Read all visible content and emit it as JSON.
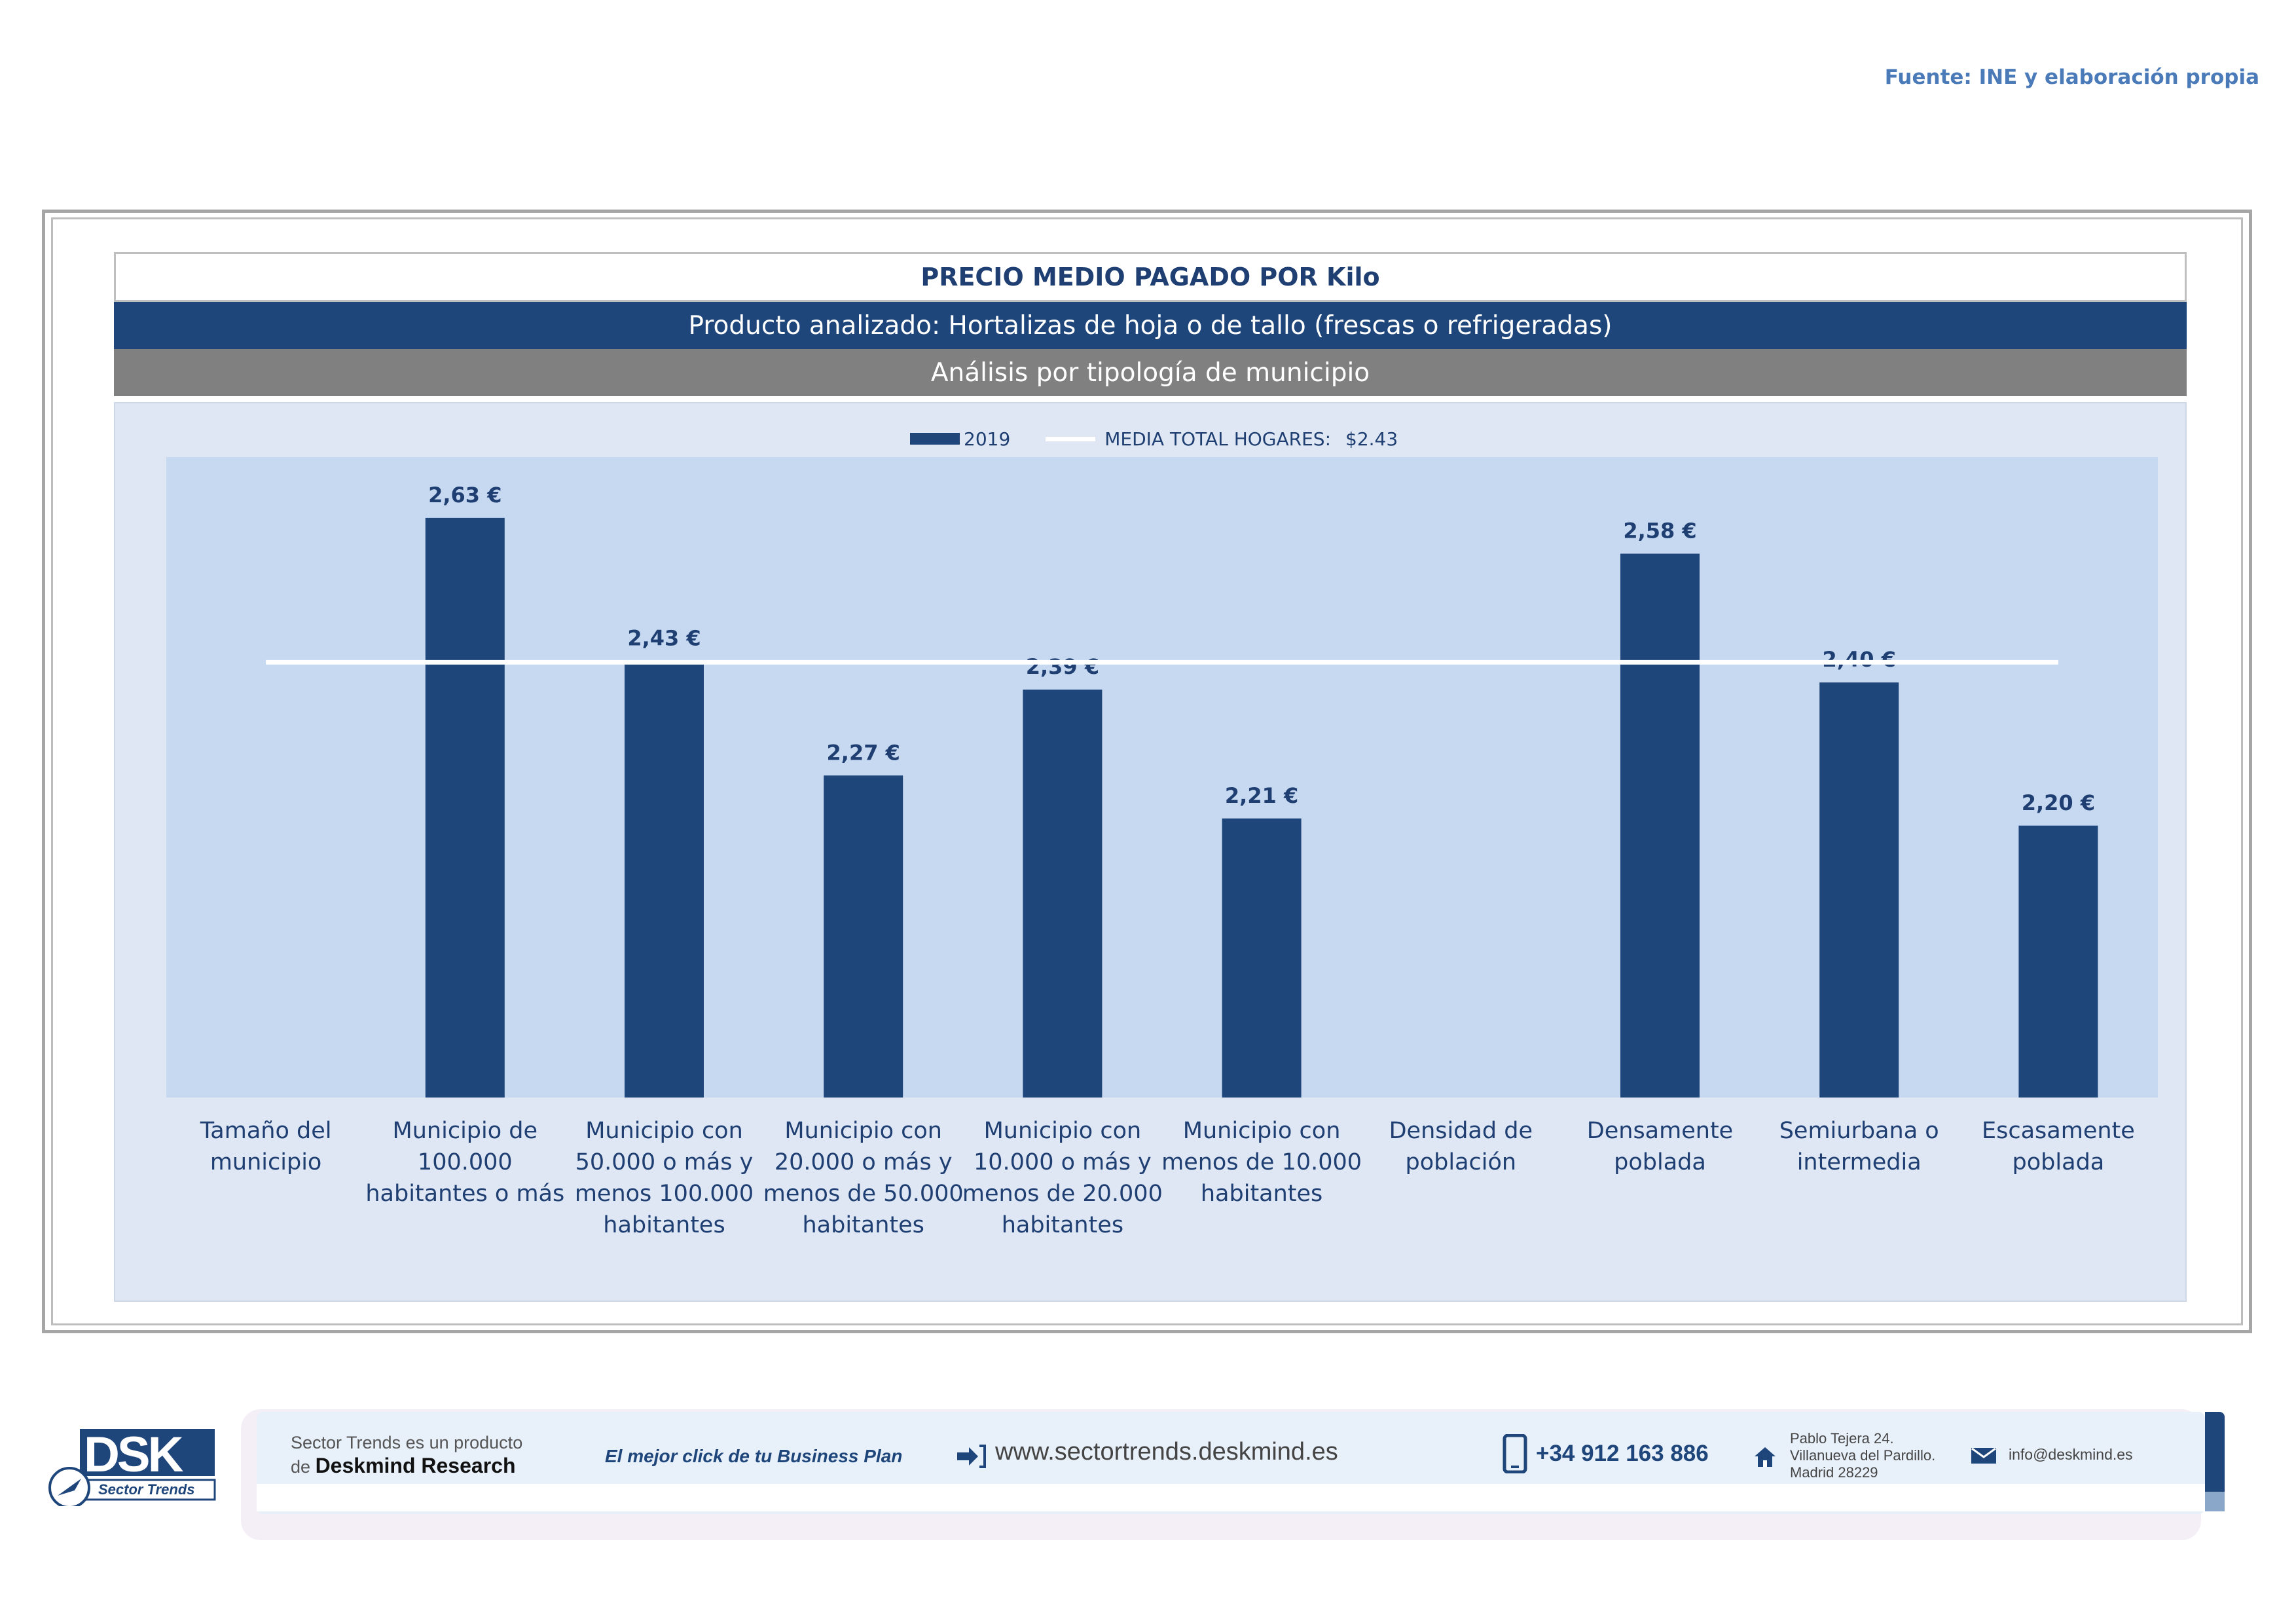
{
  "header": {
    "source": "Fuente: INE y elaboración propia"
  },
  "panel": {
    "title": "PRECIO MEDIO PAGADO POR Kilo",
    "product": "Producto analizado: Hortalizas de hoja o de tallo (frescas o refrigeradas)",
    "analysis": "Análisis por tipología de municipio"
  },
  "chart_data": {
    "type": "bar",
    "title": "PRECIO MEDIO PAGADO POR Kilo",
    "xlabel": "",
    "ylabel": "",
    "ylim": [
      1.82,
      2.715
    ],
    "grid": false,
    "legend_position": "top-center",
    "categories": [
      [
        "Tamaño del",
        "municipio"
      ],
      [
        "Municipio de",
        "100.000",
        "habitantes o más"
      ],
      [
        "Municipio con",
        "50.000 o más y",
        "menos 100.000",
        "habitantes"
      ],
      [
        "Municipio con",
        "20.000 o más y",
        "menos de 50.000",
        "habitantes"
      ],
      [
        "Municipio con",
        "10.000 o más y",
        "menos de 20.000",
        "habitantes"
      ],
      [
        "Municipio con",
        "menos de 10.000",
        "habitantes"
      ],
      [
        "Densidad de",
        "población"
      ],
      [
        "Densamente",
        "poblada"
      ],
      [
        "Semiurbana o",
        "intermedia"
      ],
      [
        "Escasamente",
        "poblada"
      ]
    ],
    "series": [
      {
        "name": "2019",
        "values": [
          null,
          2.63,
          2.43,
          2.27,
          2.39,
          2.21,
          null,
          2.58,
          2.4,
          2.2
        ],
        "labels": [
          "",
          "2,63 €",
          "2,43 €",
          "2,27 €",
          "2,39 €",
          "2,21 €",
          "",
          "2,58 €",
          "2,40 €",
          "2,20 €"
        ]
      }
    ],
    "reference_line": {
      "name": "MEDIA TOTAL  HOGARES:",
      "label": "$2.43",
      "value": 2.43
    }
  },
  "footer": {
    "logo_text": "DSK",
    "logo_sub": "Sector Trends",
    "product_line1": "Sector Trends es un producto",
    "product_line2_prefix": "de",
    "product_line2_brand": "Deskmind Research",
    "slogan": "El mejor click de tu Business Plan",
    "website": "www.sectortrends.deskmind.es",
    "phone": "+34 912 163 886",
    "address_line1": "Pablo Tejera 24.",
    "address_line2": "Villanueva del Pardillo.",
    "address_line3": "Madrid 28229",
    "email": "info@deskmind.es"
  }
}
